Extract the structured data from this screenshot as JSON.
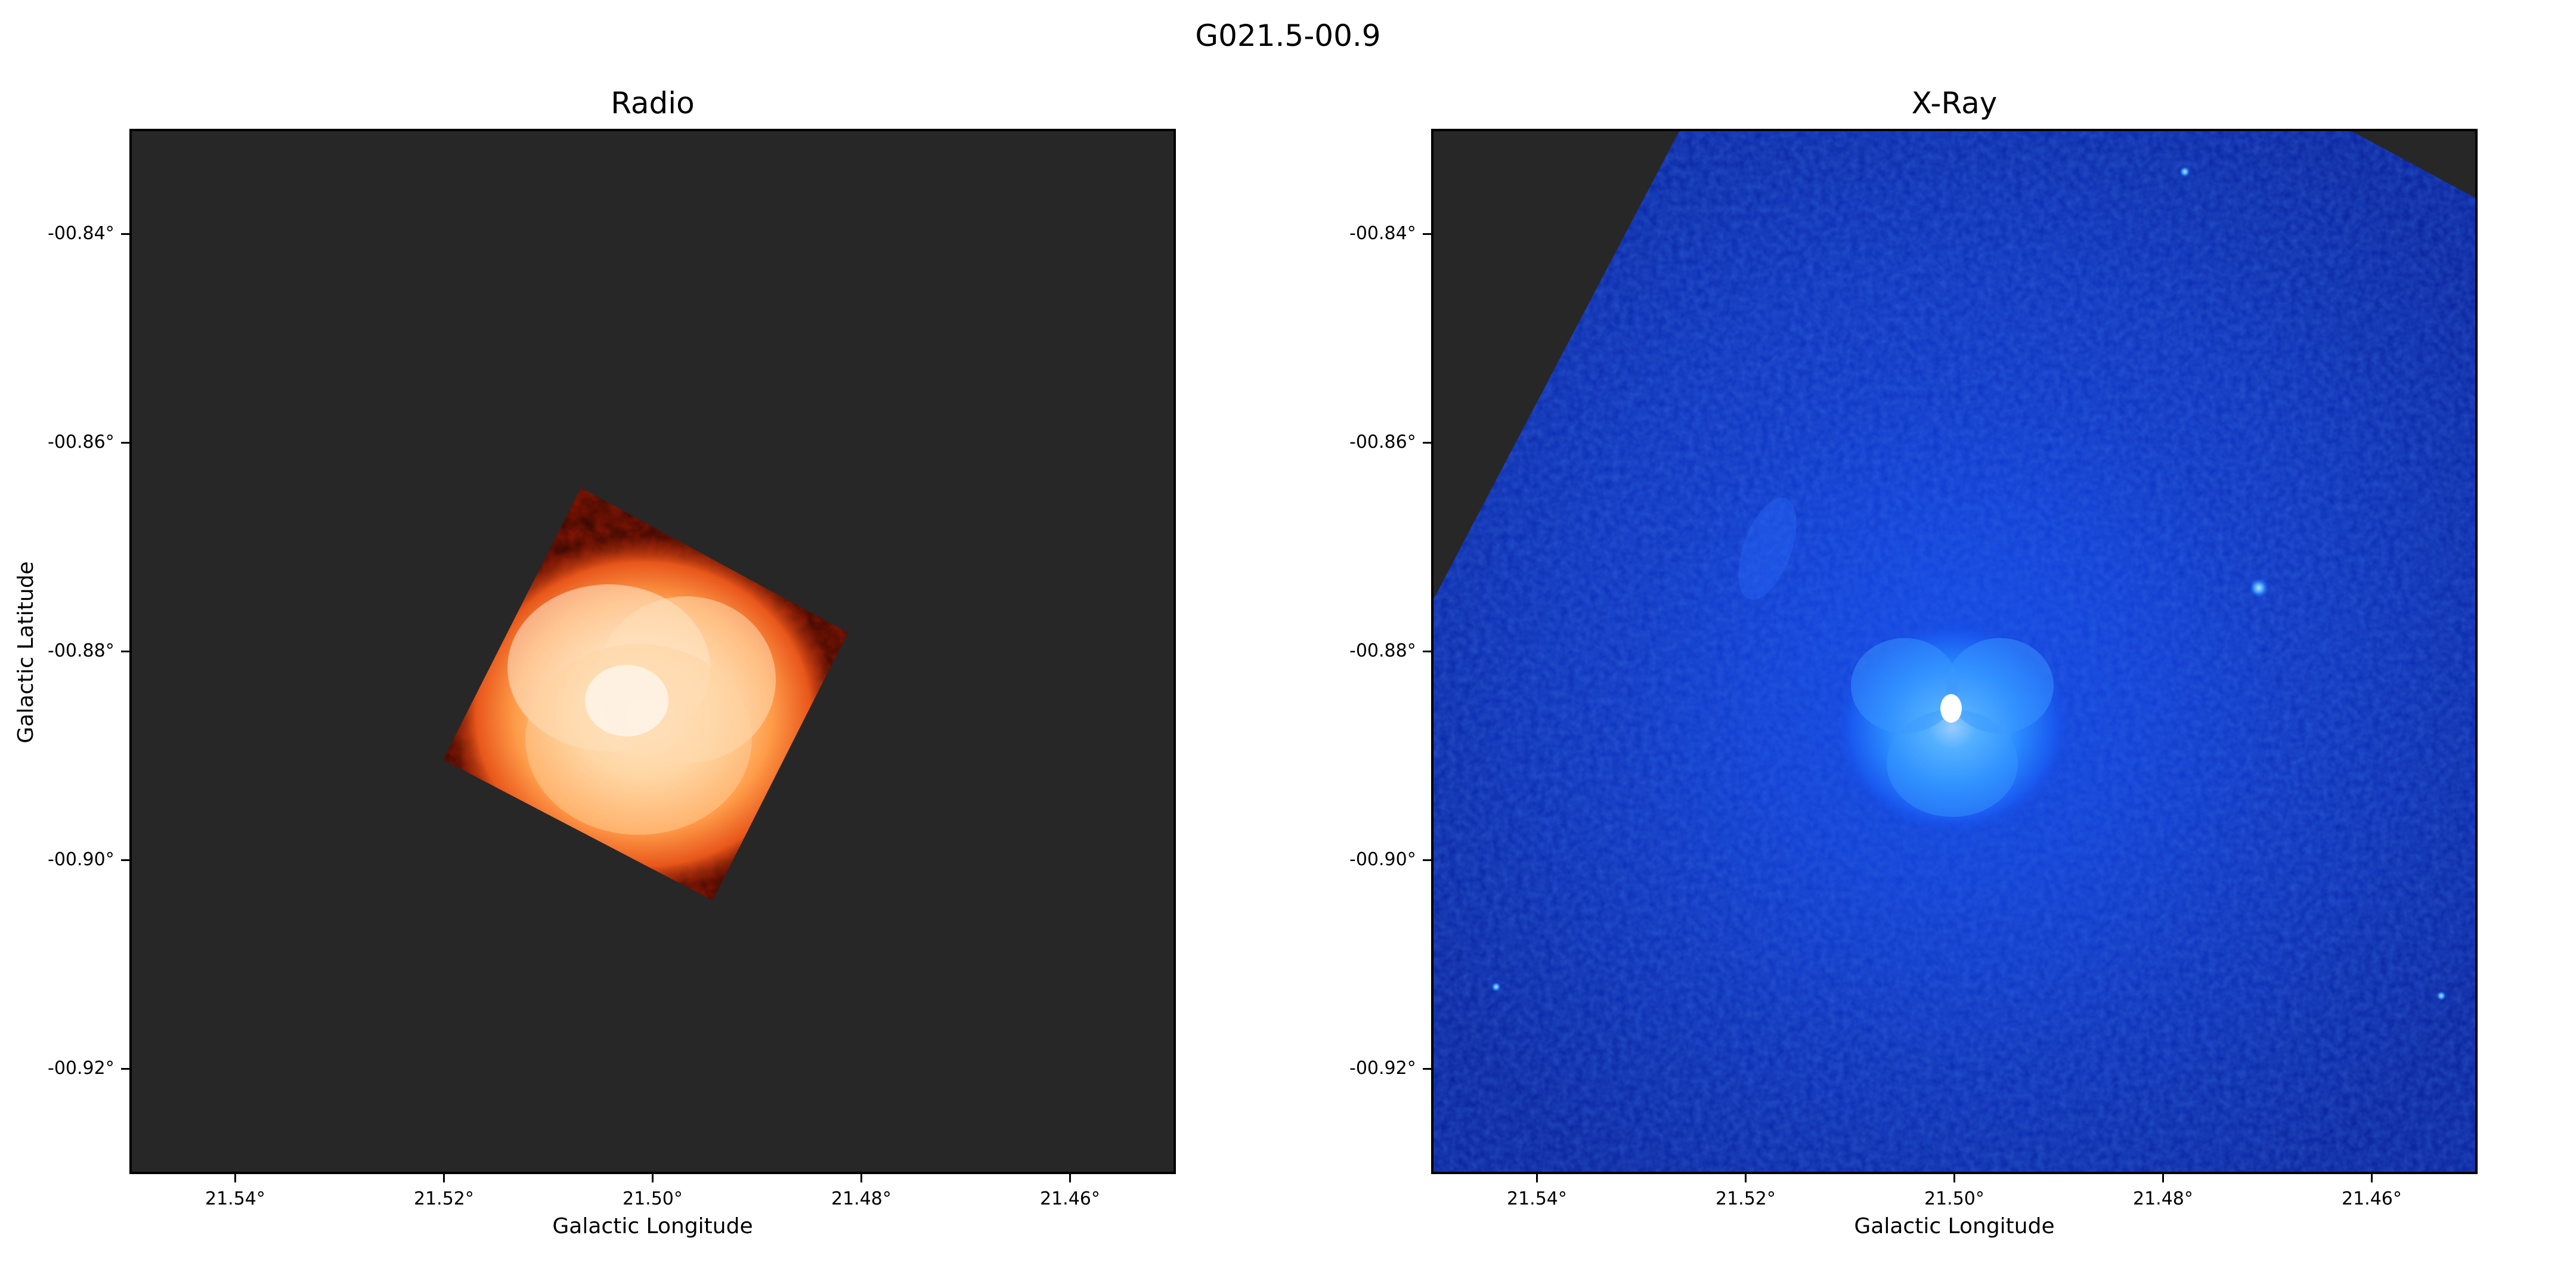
{
  "figure": {
    "title": "G021.5-00.9"
  },
  "panels": [
    {
      "title": "Radio",
      "colormap": "hot",
      "background_color": "#272727",
      "xlabel": "Galactic Longitude",
      "ylabel": "Galactic Latitude",
      "xticks": [
        "21.54°",
        "21.52°",
        "21.50°",
        "21.48°",
        "21.46°"
      ],
      "yticks": [
        "-00.84°",
        "-00.86°",
        "-00.88°",
        "-00.90°",
        "-00.92°"
      ]
    },
    {
      "title": "X-Ray",
      "colormap": "blue",
      "background_color": "#272727",
      "xlabel": "Galactic Longitude",
      "ylabel": "",
      "xticks": [
        "21.54°",
        "21.52°",
        "21.50°",
        "21.48°",
        "21.46°"
      ],
      "yticks": [
        "-00.84°",
        "-00.86°",
        "-00.88°",
        "-00.90°",
        "-00.92°"
      ]
    }
  ]
}
